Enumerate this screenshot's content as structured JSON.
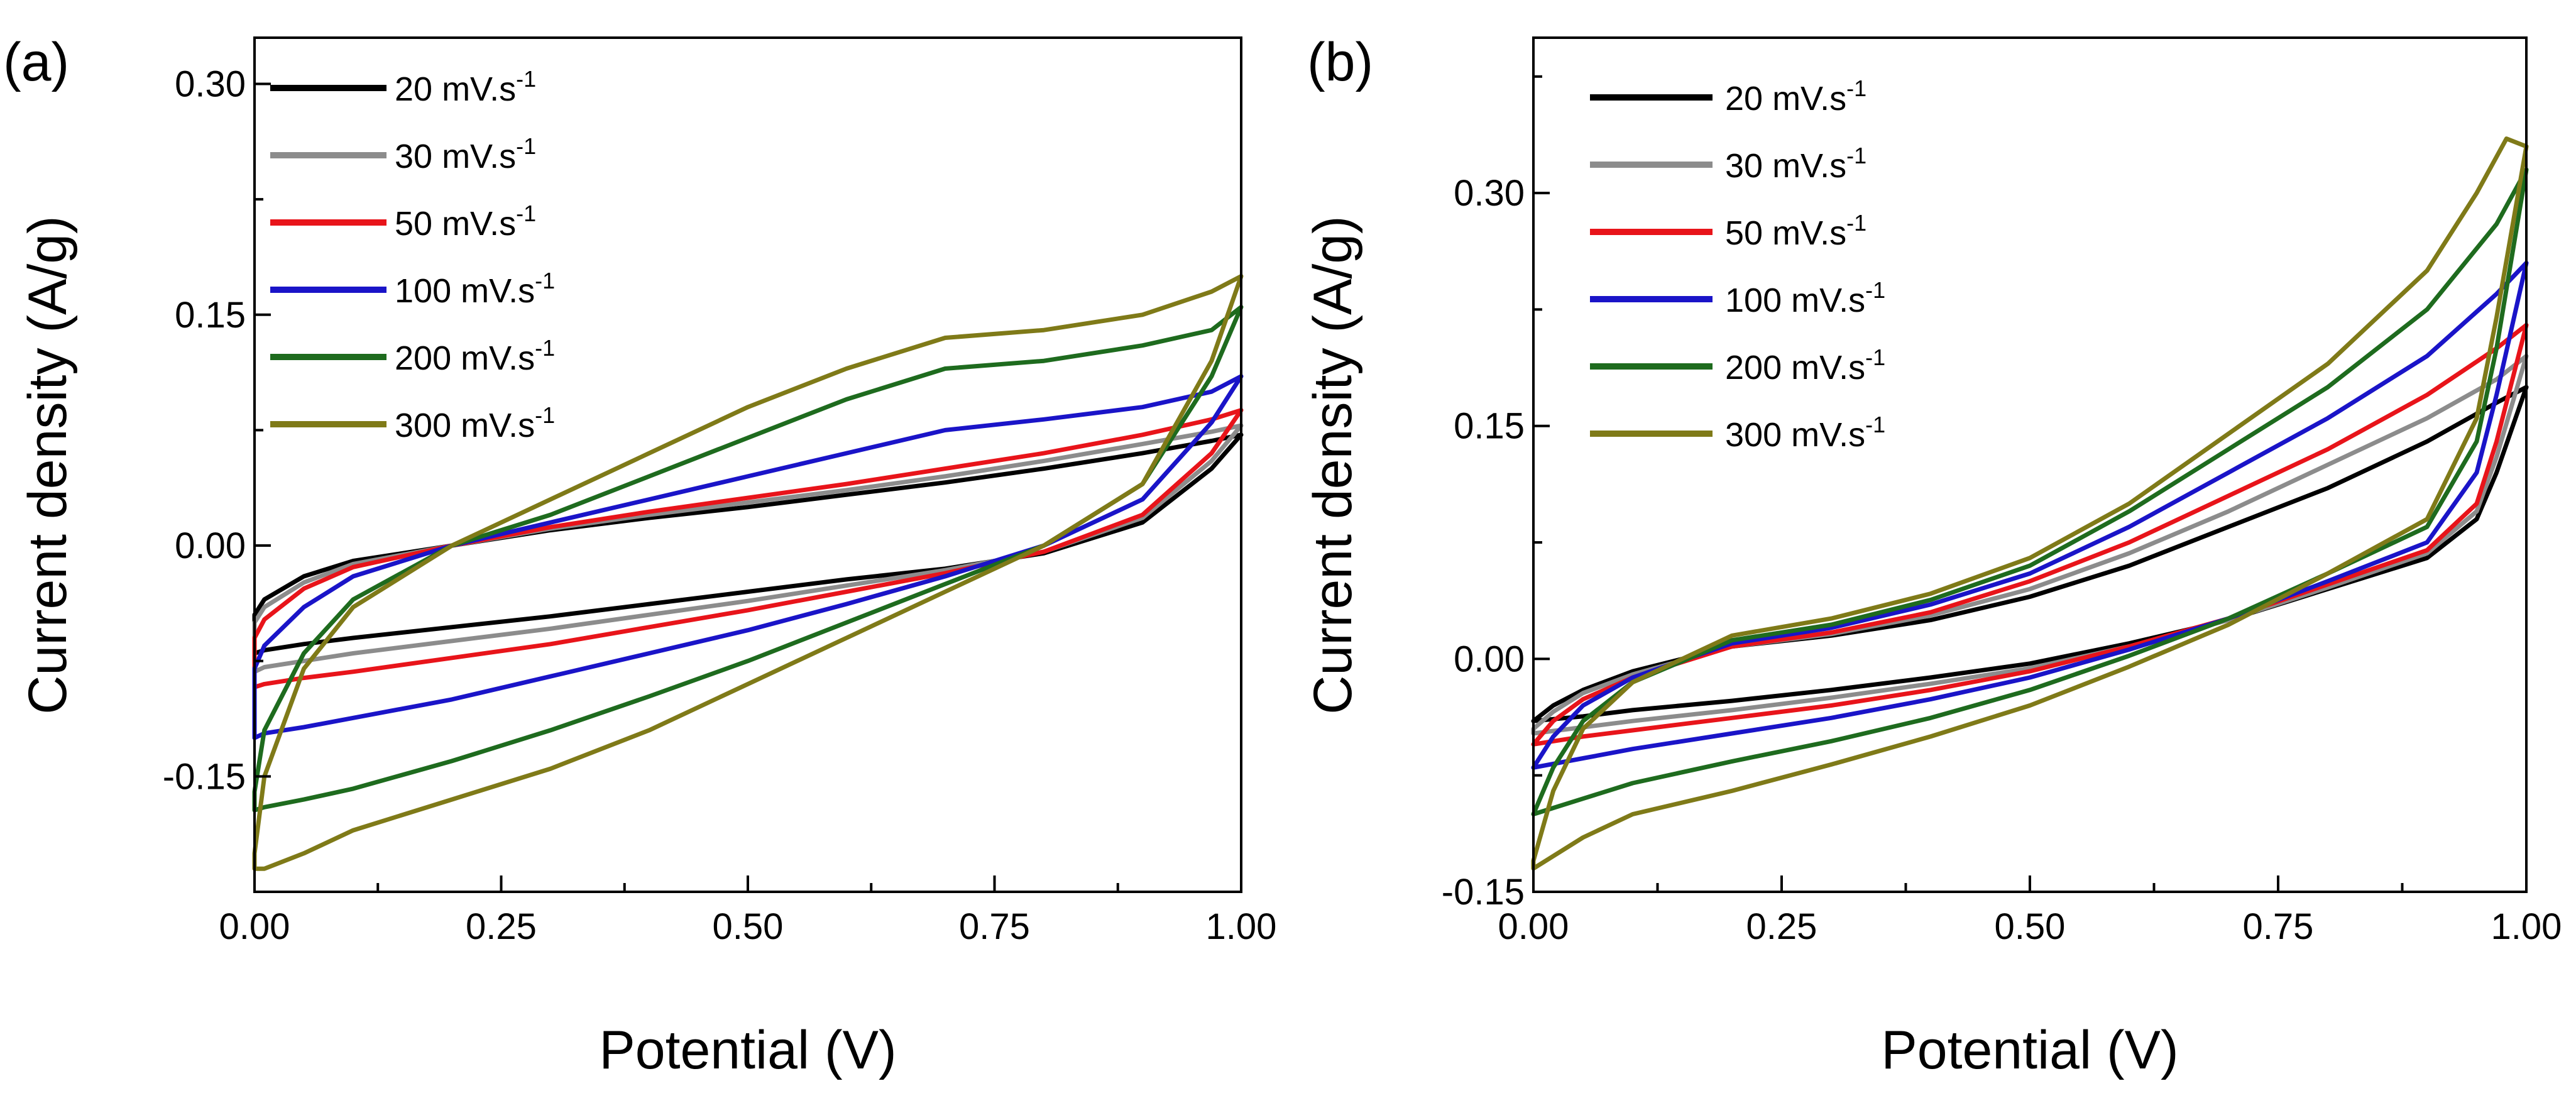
{
  "chart_data": [
    {
      "type": "line",
      "panel_label": "(a)",
      "xlabel": "Potential (V)",
      "ylabel": "Current density (A/g)",
      "xlim": [
        0.0,
        1.0
      ],
      "ylim": [
        -0.225,
        0.33
      ],
      "x_ticks": [
        0.0,
        0.25,
        0.5,
        0.75,
        1.0
      ],
      "x_tick_labels": [
        "0.00",
        "0.25",
        "0.50",
        "0.75",
        "1.00"
      ],
      "y_ticks": [
        -0.15,
        0.0,
        0.15,
        0.3
      ],
      "y_tick_labels": [
        "-0.15",
        "0.00",
        "0.15",
        "0.30"
      ],
      "legend_position": "top-left",
      "series": [
        {
          "name": "20 mV.s",
          "sup": "-1",
          "color": "#000000",
          "upper": {
            "x": [
              0.0,
              0.01,
              0.05,
              0.1,
              0.2,
              0.3,
              0.4,
              0.5,
              0.6,
              0.7,
              0.8,
              0.9,
              0.97,
              1.0
            ],
            "y": [
              -0.045,
              -0.035,
              -0.02,
              -0.01,
              0.0,
              0.01,
              0.018,
              0.025,
              0.033,
              0.041,
              0.05,
              0.06,
              0.068,
              0.072
            ]
          },
          "lower": {
            "x": [
              1.0,
              0.97,
              0.9,
              0.8,
              0.7,
              0.6,
              0.5,
              0.4,
              0.3,
              0.2,
              0.1,
              0.05,
              0.01,
              0.0
            ],
            "y": [
              0.072,
              0.05,
              0.015,
              -0.005,
              -0.015,
              -0.022,
              -0.03,
              -0.038,
              -0.046,
              -0.053,
              -0.06,
              -0.064,
              -0.068,
              -0.07
            ]
          }
        },
        {
          "name": "30 mV.s",
          "sup": "-1",
          "color": "#8c8c8c",
          "upper": {
            "x": [
              0.0,
              0.01,
              0.05,
              0.1,
              0.2,
              0.3,
              0.4,
              0.5,
              0.6,
              0.7,
              0.8,
              0.9,
              0.97,
              1.0
            ],
            "y": [
              -0.05,
              -0.04,
              -0.024,
              -0.012,
              0.0,
              0.011,
              0.02,
              0.028,
              0.036,
              0.045,
              0.055,
              0.066,
              0.074,
              0.078
            ]
          },
          "lower": {
            "x": [
              1.0,
              0.97,
              0.9,
              0.8,
              0.7,
              0.6,
              0.5,
              0.4,
              0.3,
              0.2,
              0.1,
              0.05,
              0.01,
              0.0
            ],
            "y": [
              0.078,
              0.055,
              0.018,
              -0.004,
              -0.016,
              -0.026,
              -0.036,
              -0.045,
              -0.054,
              -0.062,
              -0.07,
              -0.075,
              -0.079,
              -0.082
            ]
          }
        },
        {
          "name": "50 mV.s",
          "sup": "-1",
          "color": "#e8141a",
          "upper": {
            "x": [
              0.0,
              0.01,
              0.05,
              0.1,
              0.2,
              0.3,
              0.4,
              0.5,
              0.6,
              0.7,
              0.8,
              0.9,
              0.97,
              1.0
            ],
            "y": [
              -0.06,
              -0.048,
              -0.028,
              -0.014,
              0.0,
              0.012,
              0.022,
              0.031,
              0.04,
              0.05,
              0.06,
              0.072,
              0.082,
              0.088
            ]
          },
          "lower": {
            "x": [
              1.0,
              0.97,
              0.9,
              0.8,
              0.7,
              0.6,
              0.5,
              0.4,
              0.3,
              0.2,
              0.1,
              0.05,
              0.01,
              0.0
            ],
            "y": [
              0.088,
              0.06,
              0.02,
              -0.004,
              -0.018,
              -0.03,
              -0.042,
              -0.053,
              -0.064,
              -0.073,
              -0.082,
              -0.086,
              -0.09,
              -0.092
            ]
          }
        },
        {
          "name": "100 mV.s",
          "sup": "-1",
          "color": "#1a14c8",
          "upper": {
            "x": [
              0.0,
              0.01,
              0.05,
              0.1,
              0.2,
              0.3,
              0.4,
              0.5,
              0.6,
              0.7,
              0.8,
              0.9,
              0.97,
              1.0
            ],
            "y": [
              -0.08,
              -0.065,
              -0.04,
              -0.02,
              0.0,
              0.015,
              0.03,
              0.045,
              0.06,
              0.075,
              0.082,
              0.09,
              0.1,
              0.11
            ]
          },
          "lower": {
            "x": [
              1.0,
              0.97,
              0.9,
              0.8,
              0.7,
              0.6,
              0.5,
              0.4,
              0.3,
              0.2,
              0.1,
              0.05,
              0.01,
              0.0
            ],
            "y": [
              0.11,
              0.08,
              0.03,
              0.0,
              -0.02,
              -0.038,
              -0.055,
              -0.07,
              -0.085,
              -0.1,
              -0.112,
              -0.118,
              -0.122,
              -0.125
            ]
          }
        },
        {
          "name": "200 mV.s",
          "sup": "-1",
          "color": "#1e6b1e",
          "upper": {
            "x": [
              0.0,
              0.01,
              0.05,
              0.1,
              0.2,
              0.3,
              0.4,
              0.5,
              0.6,
              0.7,
              0.8,
              0.9,
              0.97,
              1.0
            ],
            "y": [
              -0.16,
              -0.12,
              -0.07,
              -0.035,
              0.0,
              0.02,
              0.045,
              0.07,
              0.095,
              0.115,
              0.12,
              0.13,
              0.14,
              0.155
            ]
          },
          "lower": {
            "x": [
              1.0,
              0.97,
              0.9,
              0.8,
              0.7,
              0.6,
              0.5,
              0.4,
              0.3,
              0.2,
              0.1,
              0.05,
              0.01,
              0.0
            ],
            "y": [
              0.155,
              0.11,
              0.04,
              0.0,
              -0.025,
              -0.05,
              -0.075,
              -0.098,
              -0.12,
              -0.14,
              -0.158,
              -0.165,
              -0.17,
              -0.172
            ]
          }
        },
        {
          "name": "300 mV.s",
          "sup": "-1",
          "color": "#7f7a18",
          "upper": {
            "x": [
              0.0,
              0.01,
              0.05,
              0.1,
              0.2,
              0.3,
              0.4,
              0.5,
              0.6,
              0.7,
              0.8,
              0.9,
              0.97,
              1.0
            ],
            "y": [
              -0.2,
              -0.15,
              -0.08,
              -0.04,
              0.0,
              0.03,
              0.06,
              0.09,
              0.115,
              0.135,
              0.14,
              0.15,
              0.165,
              0.175
            ]
          },
          "lower": {
            "x": [
              1.0,
              0.97,
              0.9,
              0.8,
              0.7,
              0.6,
              0.5,
              0.4,
              0.3,
              0.2,
              0.1,
              0.05,
              0.01,
              0.0
            ],
            "y": [
              0.175,
              0.12,
              0.04,
              0.0,
              -0.03,
              -0.06,
              -0.09,
              -0.12,
              -0.145,
              -0.165,
              -0.185,
              -0.2,
              -0.21,
              -0.21
            ]
          }
        }
      ]
    },
    {
      "type": "line",
      "panel_label": "(b)",
      "xlabel": "Potential (V)",
      "ylabel": "Current density (A/g)",
      "xlim": [
        0.0,
        1.0
      ],
      "ylim": [
        -0.15,
        0.4
      ],
      "x_ticks": [
        0.0,
        0.25,
        0.5,
        0.75,
        1.0
      ],
      "x_tick_labels": [
        "0.00",
        "0.25",
        "0.50",
        "0.75",
        "1.00"
      ],
      "y_ticks": [
        -0.15,
        0.0,
        0.15,
        0.3
      ],
      "y_tick_labels": [
        "-0.15",
        "0.00",
        "0.15",
        "0.30"
      ],
      "legend_position": "top-left",
      "series": [
        {
          "name": "20 mV.s",
          "sup": "-1",
          "color": "#000000",
          "upper": {
            "x": [
              0.0,
              0.02,
              0.05,
              0.1,
              0.2,
              0.3,
              0.4,
              0.5,
              0.6,
              0.7,
              0.8,
              0.9,
              0.97,
              1.0
            ],
            "y": [
              -0.04,
              -0.03,
              -0.02,
              -0.008,
              0.008,
              0.015,
              0.025,
              0.04,
              0.06,
              0.085,
              0.11,
              0.14,
              0.165,
              0.175
            ]
          },
          "lower": {
            "x": [
              1.0,
              0.97,
              0.95,
              0.9,
              0.8,
              0.7,
              0.6,
              0.5,
              0.4,
              0.3,
              0.2,
              0.1,
              0.05,
              0.0
            ],
            "y": [
              0.175,
              0.12,
              0.09,
              0.065,
              0.045,
              0.025,
              0.01,
              -0.003,
              -0.012,
              -0.02,
              -0.027,
              -0.033,
              -0.037,
              -0.04
            ]
          }
        },
        {
          "name": "30 mV.s",
          "sup": "-1",
          "color": "#8c8c8c",
          "upper": {
            "x": [
              0.0,
              0.02,
              0.05,
              0.1,
              0.2,
              0.3,
              0.4,
              0.5,
              0.6,
              0.7,
              0.8,
              0.9,
              0.97,
              1.0
            ],
            "y": [
              -0.045,
              -0.034,
              -0.022,
              -0.01,
              0.008,
              0.016,
              0.028,
              0.045,
              0.068,
              0.095,
              0.125,
              0.155,
              0.18,
              0.195
            ]
          },
          "lower": {
            "x": [
              1.0,
              0.97,
              0.95,
              0.9,
              0.8,
              0.7,
              0.6,
              0.5,
              0.4,
              0.3,
              0.2,
              0.1,
              0.05,
              0.0
            ],
            "y": [
              0.195,
              0.13,
              0.095,
              0.068,
              0.046,
              0.025,
              0.008,
              -0.006,
              -0.016,
              -0.025,
              -0.033,
              -0.04,
              -0.044,
              -0.048
            ]
          }
        },
        {
          "name": "50 mV.s",
          "sup": "-1",
          "color": "#e8141a",
          "upper": {
            "x": [
              0.0,
              0.02,
              0.05,
              0.1,
              0.2,
              0.3,
              0.4,
              0.5,
              0.6,
              0.7,
              0.8,
              0.9,
              0.97,
              1.0
            ],
            "y": [
              -0.055,
              -0.04,
              -0.026,
              -0.012,
              0.008,
              0.017,
              0.03,
              0.05,
              0.075,
              0.105,
              0.135,
              0.17,
              0.2,
              0.215
            ]
          },
          "lower": {
            "x": [
              1.0,
              0.97,
              0.95,
              0.9,
              0.8,
              0.7,
              0.6,
              0.5,
              0.4,
              0.3,
              0.2,
              0.1,
              0.05,
              0.0
            ],
            "y": [
              0.215,
              0.14,
              0.1,
              0.07,
              0.048,
              0.026,
              0.008,
              -0.008,
              -0.02,
              -0.03,
              -0.038,
              -0.046,
              -0.05,
              -0.055
            ]
          }
        },
        {
          "name": "100 mV.s",
          "sup": "-1",
          "color": "#1a14c8",
          "upper": {
            "x": [
              0.0,
              0.02,
              0.05,
              0.1,
              0.2,
              0.3,
              0.4,
              0.5,
              0.6,
              0.7,
              0.8,
              0.9,
              0.97,
              1.0
            ],
            "y": [
              -0.07,
              -0.05,
              -0.03,
              -0.012,
              0.01,
              0.02,
              0.035,
              0.055,
              0.085,
              0.12,
              0.155,
              0.195,
              0.235,
              0.255
            ]
          },
          "lower": {
            "x": [
              1.0,
              0.97,
              0.95,
              0.9,
              0.8,
              0.7,
              0.6,
              0.5,
              0.4,
              0.3,
              0.2,
              0.1,
              0.05,
              0.0
            ],
            "y": [
              0.255,
              0.17,
              0.12,
              0.075,
              0.05,
              0.026,
              0.006,
              -0.012,
              -0.026,
              -0.038,
              -0.048,
              -0.058,
              -0.064,
              -0.07
            ]
          }
        },
        {
          "name": "200 mV.s",
          "sup": "-1",
          "color": "#1e6b1e",
          "upper": {
            "x": [
              0.0,
              0.02,
              0.05,
              0.1,
              0.2,
              0.3,
              0.4,
              0.5,
              0.6,
              0.7,
              0.8,
              0.9,
              0.97,
              1.0
            ],
            "y": [
              -0.1,
              -0.07,
              -0.04,
              -0.015,
              0.012,
              0.022,
              0.038,
              0.06,
              0.095,
              0.135,
              0.175,
              0.225,
              0.28,
              0.315
            ]
          },
          "lower": {
            "x": [
              1.0,
              0.97,
              0.95,
              0.9,
              0.8,
              0.7,
              0.6,
              0.5,
              0.4,
              0.3,
              0.2,
              0.1,
              0.05,
              0.0
            ],
            "y": [
              0.315,
              0.2,
              0.14,
              0.085,
              0.055,
              0.026,
              0.002,
              -0.02,
              -0.038,
              -0.053,
              -0.066,
              -0.08,
              -0.09,
              -0.1
            ]
          }
        },
        {
          "name": "300 mV.s",
          "sup": "-1",
          "color": "#7f7a18",
          "upper": {
            "x": [
              0.0,
              0.02,
              0.05,
              0.1,
              0.2,
              0.3,
              0.4,
              0.5,
              0.6,
              0.7,
              0.8,
              0.9,
              0.95,
              0.98,
              1.0
            ],
            "y": [
              -0.13,
              -0.085,
              -0.045,
              -0.015,
              0.015,
              0.026,
              0.042,
              0.065,
              0.1,
              0.145,
              0.19,
              0.25,
              0.3,
              0.335,
              0.33
            ]
          },
          "lower": {
            "x": [
              1.0,
              0.97,
              0.95,
              0.9,
              0.8,
              0.7,
              0.6,
              0.5,
              0.4,
              0.3,
              0.2,
              0.1,
              0.05,
              0.0
            ],
            "y": [
              0.33,
              0.22,
              0.155,
              0.09,
              0.055,
              0.022,
              -0.005,
              -0.03,
              -0.05,
              -0.068,
              -0.085,
              -0.1,
              -0.115,
              -0.135
            ]
          }
        }
      ]
    }
  ]
}
